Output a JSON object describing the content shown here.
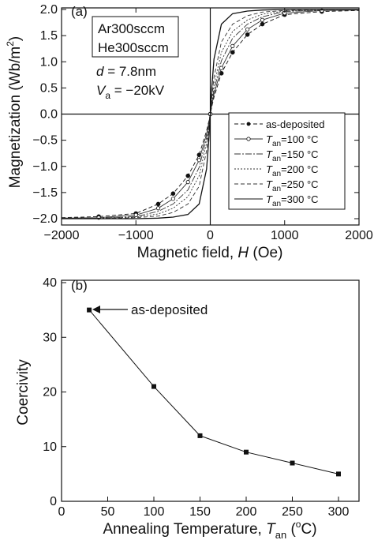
{
  "chart_data": [
    {
      "panel": "(a)",
      "type": "line",
      "xlabel": "Magnetic field, H (Oe)",
      "xlabel_parts": [
        "Magnetic field, ",
        "H",
        " (Oe)"
      ],
      "ylabel": "Magnetization (Wb/m²)",
      "ylabel_parts": [
        "Magnetization (Wb/m",
        "2",
        ")"
      ],
      "xlim": [
        -2000,
        2000
      ],
      "ylim": [
        -2.0,
        2.0
      ],
      "xticks": [
        "-2000",
        "-1000",
        "0",
        "1000",
        "2000"
      ],
      "yticks": [
        "-2.0",
        "-1.5",
        "-1.0",
        "-0.5",
        "0.0",
        "0.5",
        "1.0",
        "1.5",
        "2.0"
      ],
      "xtick_values": [
        -2000,
        -1000,
        0,
        1000,
        2000
      ],
      "ytick_values": [
        -2.0,
        -1.5,
        -1.0,
        -0.5,
        0.0,
        0.5,
        1.0,
        1.5,
        2.0
      ],
      "annotations": {
        "gas1": "Ar300sccm",
        "gas2": "He300sccm",
        "thickness": [
          "d",
          " = 7.8nm"
        ],
        "voltage": [
          "V",
          "a",
          " = −20kV"
        ]
      },
      "legend_position": "lower-right",
      "series": [
        {
          "name": "as-deposited",
          "legend_parts": [
            "",
            "",
            "as-deposited"
          ],
          "style": "dot",
          "color": "#111111",
          "dash": "5,3",
          "saturation_field": 1000,
          "x": [
            -2000,
            -1500,
            -1000,
            -700,
            -500,
            -300,
            -150,
            -50,
            -20,
            0,
            20,
            50,
            150,
            300,
            500,
            700,
            1000,
            1500,
            2000
          ],
          "y": [
            -1.98,
            -1.96,
            -1.9,
            -1.72,
            -1.52,
            -1.18,
            -0.78,
            -0.32,
            -0.14,
            0.0,
            0.14,
            0.32,
            0.78,
            1.18,
            1.52,
            1.72,
            1.9,
            1.96,
            1.98
          ]
        },
        {
          "name": "Tan=100 °C",
          "legend_parts": [
            "T",
            "an",
            "=100 °C"
          ],
          "style": "circle",
          "color": "#333333",
          "dash": "",
          "saturation_field": 800,
          "x": [
            -2000,
            -1500,
            -1000,
            -700,
            -500,
            -300,
            -150,
            -50,
            -20,
            0,
            20,
            50,
            150,
            300,
            500,
            700,
            1000,
            1500,
            2000
          ],
          "y": [
            -1.99,
            -1.98,
            -1.93,
            -1.8,
            -1.62,
            -1.3,
            -0.88,
            -0.38,
            -0.17,
            0.0,
            0.17,
            0.38,
            0.88,
            1.3,
            1.62,
            1.8,
            1.93,
            1.98,
            1.99
          ]
        },
        {
          "name": "Tan=150 °C",
          "legend_parts": [
            "T",
            "an",
            "=150 °C"
          ],
          "style": "line",
          "color": "#333333",
          "dash": "8,2,2,2",
          "saturation_field": 700,
          "x": [
            -2000,
            -1500,
            -1000,
            -700,
            -500,
            -300,
            -150,
            -50,
            -20,
            0,
            20,
            50,
            150,
            300,
            500,
            700,
            1000,
            1500,
            2000
          ],
          "y": [
            -1.99,
            -1.99,
            -1.96,
            -1.86,
            -1.72,
            -1.45,
            -1.02,
            -0.45,
            -0.2,
            0.0,
            0.2,
            0.45,
            1.02,
            1.45,
            1.72,
            1.86,
            1.96,
            1.99,
            1.99
          ]
        },
        {
          "name": "Tan=200 °C",
          "legend_parts": [
            "T",
            "an",
            "=200 °C"
          ],
          "style": "line",
          "color": "#333333",
          "dash": "2,2",
          "saturation_field": 600,
          "x": [
            -2000,
            -1500,
            -1000,
            -700,
            -500,
            -300,
            -150,
            -50,
            -20,
            0,
            20,
            50,
            150,
            300,
            500,
            700,
            1000,
            1500,
            2000
          ],
          "y": [
            -2.0,
            -1.99,
            -1.97,
            -1.91,
            -1.8,
            -1.58,
            -1.18,
            -0.55,
            -0.25,
            0.0,
            0.25,
            0.55,
            1.18,
            1.58,
            1.8,
            1.91,
            1.97,
            1.99,
            2.0
          ]
        },
        {
          "name": "Tan=250 °C",
          "legend_parts": [
            "T",
            "an",
            "=250 °C"
          ],
          "style": "line",
          "color": "#333333",
          "dash": "5,3",
          "saturation_field": 500,
          "x": [
            -2000,
            -1500,
            -1000,
            -700,
            -500,
            -300,
            -150,
            -50,
            -20,
            0,
            20,
            50,
            150,
            300,
            500,
            700,
            1000,
            1500,
            2000
          ],
          "y": [
            -2.0,
            -2.0,
            -1.98,
            -1.95,
            -1.88,
            -1.72,
            -1.38,
            -0.7,
            -0.32,
            0.0,
            0.32,
            0.7,
            1.38,
            1.72,
            1.88,
            1.95,
            1.98,
            2.0,
            2.0
          ]
        },
        {
          "name": "Tan=300 °C",
          "legend_parts": [
            "T",
            "an",
            "=300 °C"
          ],
          "style": "line",
          "color": "#111111",
          "dash": "",
          "saturation_field": 300,
          "x": [
            -2000,
            -1500,
            -1000,
            -700,
            -500,
            -300,
            -150,
            -50,
            -20,
            0,
            20,
            50,
            150,
            300,
            500,
            700,
            1000,
            1500,
            2000
          ],
          "y": [
            -2.0,
            -2.0,
            -2.0,
            -1.99,
            -1.97,
            -1.92,
            -1.72,
            -1.05,
            -0.5,
            0.0,
            0.5,
            1.05,
            1.72,
            1.92,
            1.97,
            1.99,
            2.0,
            2.0,
            2.0
          ]
        }
      ]
    },
    {
      "panel": "(b)",
      "type": "line",
      "xlabel": "Annealing Temperature, Tan (°C)",
      "xlabel_parts": [
        "Annealing Temperature, ",
        "T",
        "an",
        " (",
        "o",
        "C)"
      ],
      "ylabel": "Coercivity",
      "xlim": [
        0,
        300
      ],
      "ylim": [
        0,
        40
      ],
      "xticks": [
        "0",
        "50",
        "100",
        "150",
        "200",
        "250",
        "300"
      ],
      "yticks": [
        "0",
        "10",
        "20",
        "30",
        "40"
      ],
      "xtick_values": [
        0,
        50,
        100,
        150,
        200,
        250,
        300
      ],
      "ytick_values": [
        0,
        10,
        20,
        30,
        40
      ],
      "annotation": "as-deposited",
      "series": [
        {
          "name": "Coercivity",
          "marker": "square",
          "color": "#111111",
          "x": [
            30,
            100,
            150,
            200,
            250,
            300
          ],
          "y": [
            35,
            21,
            12,
            9,
            7,
            5
          ]
        }
      ]
    }
  ]
}
